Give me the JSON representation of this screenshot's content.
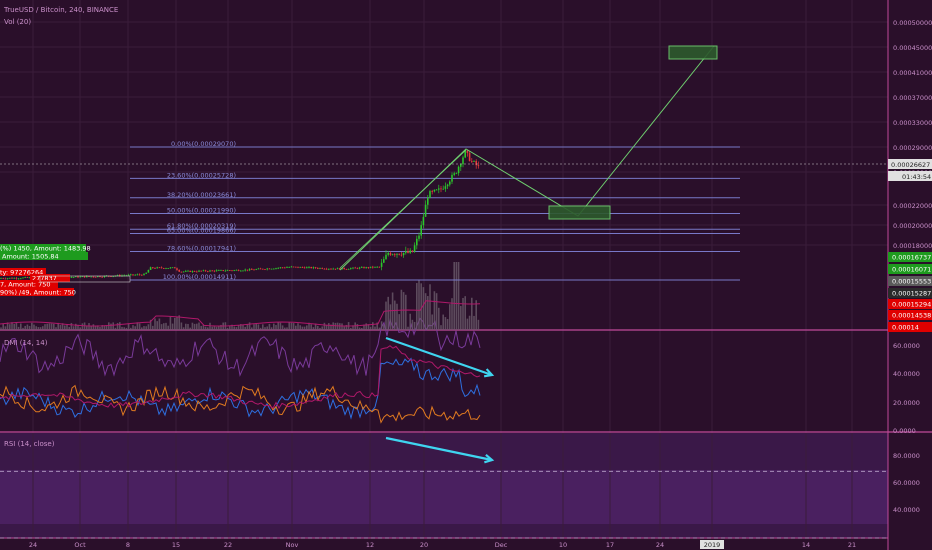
{
  "header": {
    "symbol_line": "TrueUSD / Bitcoin, 240, BINANCE",
    "vol_line": "Vol (20)"
  },
  "main_price_axis": {
    "labels": [
      "0.00050000",
      "0.00045000",
      "0.00041000",
      "0.00037000",
      "0.00033000",
      "0.00029000",
      "0.00026000",
      "0.00022000",
      "0.00020000",
      "0.00018000"
    ],
    "current_price": "0.00026627",
    "countdown": "01:43:54"
  },
  "price_tags": [
    {
      "value": "0.00016737",
      "color": "#1e9b1e"
    },
    {
      "value": "0.00016071",
      "color": "#1e9b1e"
    },
    {
      "value": "0.00015553",
      "color": "#5a5a5a"
    },
    {
      "value": "0.00015287",
      "color": "#2a2a2a"
    },
    {
      "value": "0.00015294",
      "color": "#e00000"
    },
    {
      "value": "0.00014538",
      "color": "#e00000"
    },
    {
      "value": "0.00014",
      "color": "#e00000"
    }
  ],
  "fib_levels": [
    {
      "label": "0.00%(0.00029070)",
      "value": 0.0002907
    },
    {
      "label": "23.60%(0.00025728)",
      "value": 0.00025728
    },
    {
      "label": "38.20%(0.00023661)",
      "value": 0.00023661
    },
    {
      "label": "50.00%(0.00021990)",
      "value": 0.0002199
    },
    {
      "label": "61.80%(0.00020319)",
      "value": 0.00020319
    },
    {
      "label": "65.00%(0.00019866)",
      "value": 0.00019866
    },
    {
      "label": "78.60%(0.00017941)",
      "value": 0.00017941
    },
    {
      "label": "100.00%(0.00014911)",
      "value": 0.00014911
    }
  ],
  "order_labels": [
    {
      "text": "(%) 1450, Amount: 1483.98",
      "color": "#1e9b1e"
    },
    {
      "text": "Amount: 1505.84",
      "color": "#1e9b1e"
    },
    {
      "text": "ty: 97276264",
      "color": "#e00000"
    },
    {
      "text": "277837",
      "color": "#e00000"
    },
    {
      "text": "7, Amount: 750",
      "color": "#e00000"
    },
    {
      "text": "90%) /49, Amount: 750",
      "color": "#e00000"
    }
  ],
  "dmi": {
    "title": "DMI (14, 14)",
    "axis_labels": [
      "60.0000",
      "40.0000",
      "20.0000",
      "0.0000"
    ]
  },
  "rsi": {
    "title": "RSI (14, close)",
    "axis_labels": [
      "80.0000",
      "60.0000",
      "40.0000"
    ]
  },
  "x_axis": {
    "labels": [
      "24",
      "Oct",
      "8",
      "15",
      "22",
      "Nov",
      "12",
      "20",
      "Dec",
      "10",
      "17",
      "24",
      "2019",
      "14",
      "21"
    ]
  },
  "chart_data": [
    {
      "type": "line",
      "title": "TrueUSD / Bitcoin, 240, BINANCE",
      "series": [
        {
          "name": "TrueUSD / Bitcoin",
          "x": [
            "24",
            "Oct",
            "8",
            "15",
            "22",
            "Nov",
            "12",
            "20",
            "Dec"
          ],
          "values": [
            0.000152,
            0.000153,
            0.000155,
            0.000162,
            0.000162,
            0.000163,
            0.000163,
            0.000233,
            0.000266
          ]
        }
      ],
      "annotations": [
        "0.00%(0.00029070)",
        "23.60%(0.00025728)",
        "38.20%(0.00023661)",
        "50.00%(0.00021990)",
        "61.80%(0.00020319)",
        "65.00%(0.00019866)",
        "78.60%(0.00017941)",
        "100.00%(0.00014911)"
      ]
    },
    {
      "type": "line",
      "title": "DMI (14, 14)",
      "ylim": [
        0,
        70
      ]
    },
    {
      "type": "line",
      "title": "RSI (14, close)",
      "ylim": [
        30,
        90
      ]
    }
  ],
  "colors": {
    "background": "#2a0f2a",
    "rsi_background": "#3a1848",
    "grid": "#3a1c3a",
    "axis_text": "#c98fc9",
    "fib": "#7878c8",
    "projection": "#6fcf6f",
    "arrow": "#3fd5f0",
    "divider": "#c04a9b",
    "dmi_plus": "#2e6fe0",
    "dmi_minus": "#e07a20",
    "adx": "#b0186a",
    "rsi_line": "#7a3a9a"
  }
}
